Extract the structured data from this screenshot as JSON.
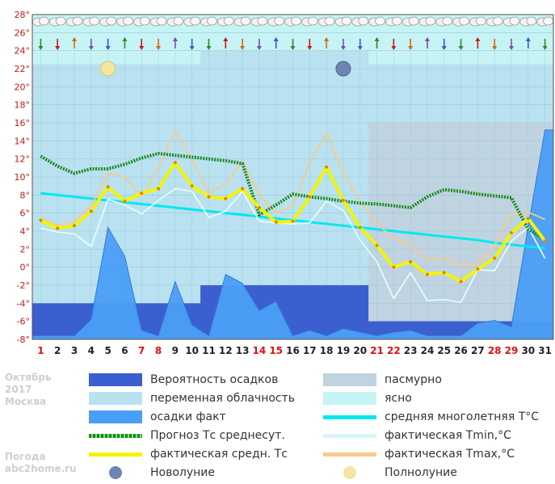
{
  "chart_data": {
    "type": "line",
    "x": [
      1,
      2,
      3,
      4,
      5,
      6,
      7,
      8,
      9,
      10,
      11,
      12,
      13,
      14,
      15,
      16,
      17,
      18,
      19,
      20,
      21,
      22,
      23,
      24,
      25,
      26,
      27,
      28,
      29,
      30,
      31
    ],
    "x_tick_labels": [
      "1",
      "2",
      "3",
      "4",
      "5",
      "6",
      "7",
      "8",
      "9",
      "10",
      "11",
      "12",
      "13",
      "14",
      "15",
      "16",
      "17",
      "18",
      "19",
      "20",
      "21",
      "22",
      "23",
      "24",
      "25",
      "26",
      "27",
      "28",
      "29",
      "30",
      "31"
    ],
    "red_days": [
      1,
      7,
      8,
      14,
      15,
      21,
      22,
      28,
      29
    ],
    "y_ticks": [
      "28°",
      "26°",
      "24°",
      "22°",
      "20°",
      "18°",
      "16°",
      "14°",
      "12°",
      "10°",
      "8°",
      "6°",
      "4°",
      "2°",
      "0°",
      "-2°",
      "-4°",
      "-6°",
      "-8°"
    ],
    "ylim": [
      -8,
      28
    ],
    "grid": true,
    "series": [
      {
        "name": "Прогноз Тс среднесут.",
        "values": [
          12.3,
          11.2,
          10.4,
          10.9,
          10.9,
          11.4,
          12.1,
          12.6,
          12.4,
          12.2,
          12.0,
          11.8,
          11.5,
          5.8,
          6.9,
          8.1,
          7.8,
          7.6,
          7.3,
          7.1,
          7.0,
          6.8,
          6.6,
          7.8,
          8.6,
          8.4,
          8.1,
          7.9,
          7.7,
          4.2,
          3.1
        ]
      },
      {
        "name": "фактическая средн. Тс",
        "values": [
          5.2,
          4.3,
          4.6,
          6.2,
          8.9,
          7.3,
          8.2,
          8.7,
          11.6,
          9.0,
          7.8,
          7.6,
          8.7,
          6.6,
          5.0,
          5.1,
          7.8,
          11.1,
          7.4,
          4.4,
          2.4,
          0.0,
          0.6,
          -0.8,
          -0.6,
          -1.6,
          -0.2,
          1.0,
          3.8,
          5.4,
          2.9
        ]
      },
      {
        "name": "фактическая Tmin,°C",
        "values": [
          4.3,
          3.9,
          3.7,
          2.3,
          7.5,
          6.9,
          5.9,
          7.4,
          8.7,
          8.4,
          5.5,
          6.2,
          8.4,
          5.1,
          4.9,
          4.8,
          4.9,
          7.3,
          6.3,
          3.0,
          0.6,
          -3.5,
          -0.6,
          -3.7,
          -3.6,
          -3.9,
          -0.3,
          -0.4,
          2.9,
          4.4,
          1.0
        ]
      },
      {
        "name": "фактическая Tmax,°C",
        "values": [
          5.4,
          4.6,
          5.1,
          6.8,
          10.4,
          10.0,
          7.8,
          11.0,
          15.1,
          11.9,
          8.2,
          9.2,
          11.7,
          8.0,
          6.0,
          6.8,
          11.6,
          14.9,
          10.4,
          7.3,
          4.8,
          3.2,
          2.4,
          0.9,
          1.0,
          0.2,
          0.4,
          2.4,
          5.9,
          6.1,
          5.3
        ]
      },
      {
        "name": "средняя многолетняя T°C",
        "values": [
          8.2,
          8.0,
          7.8,
          7.6,
          7.4,
          7.2,
          7.0,
          6.8,
          6.6,
          6.4,
          6.2,
          6.0,
          5.8,
          5.6,
          5.4,
          5.2,
          5.0,
          4.8,
          4.6,
          4.4,
          4.2,
          4.0,
          3.8,
          3.6,
          3.4,
          3.2,
          3.0,
          2.7,
          2.5,
          2.3,
          2.1
        ]
      },
      {
        "name": "осадки факт",
        "values": [
          -7.6,
          -7.6,
          -7.6,
          -5.8,
          4.4,
          1.2,
          -7.0,
          -7.6,
          -1.6,
          -6.4,
          -7.6,
          -0.8,
          -1.8,
          -4.8,
          -3.8,
          -7.6,
          -7.0,
          -7.6,
          -6.8,
          -7.2,
          -7.6,
          -7.2,
          -7.0,
          -7.6,
          -7.6,
          -7.6,
          -6.2,
          -5.9,
          -6.6,
          4.5,
          15.2
        ]
      },
      {
        "name": "Вероятность осадков",
        "values": [
          -4,
          -4,
          -4,
          -4,
          -4,
          -4,
          -4,
          -4,
          -4,
          -4,
          -2,
          -2,
          -2,
          -2,
          -2,
          -2,
          -2,
          -2,
          -2,
          -2,
          -6,
          -6,
          -6,
          -6,
          -6,
          -6,
          -6,
          -6,
          -6,
          -6,
          -6
        ]
      }
    ],
    "cloud_periods": [
      {
        "from": 1,
        "to": 10,
        "type": "переменная облачность"
      },
      {
        "from": 11,
        "to": 20,
        "type": "переменная облачность"
      },
      {
        "from": 21,
        "to": 31,
        "type": "ясно/пасмурно"
      }
    ],
    "moon": {
      "full_moon_day": 5,
      "new_moon_day": 19
    }
  },
  "legend": {
    "items": [
      {
        "label": "Вероятность осадков",
        "color": "#3c5fd0",
        "kind": "fill"
      },
      {
        "label": "пасмурно",
        "color": "#c0d3e0",
        "kind": "fill"
      },
      {
        "label": "переменная облачность",
        "color": "#b9e1f0",
        "kind": "fill"
      },
      {
        "label": "ясно",
        "color": "#c6f3f3",
        "kind": "fill"
      },
      {
        "label": "осадки факт",
        "color": "#4a9ef5",
        "kind": "fill"
      },
      {
        "label": "средняя многолетняя T°C",
        "color": "#00e8f0",
        "kind": "line"
      },
      {
        "label": "Прогноз Тс среднесут.",
        "color": "#1a8a1a",
        "kind": "dotted"
      },
      {
        "label": "фактическая Tmin,°C",
        "color": "#d8f6f8",
        "kind": "line"
      },
      {
        "label": "фактическая средн. Тс",
        "color": "#f4f400",
        "kind": "line"
      },
      {
        "label": "фактическая Tmax,°C",
        "color": "#f7c98b",
        "kind": "line"
      },
      {
        "label": "Новолуние",
        "color": "#7084b4",
        "kind": "moon"
      },
      {
        "label": "Полнолуние",
        "color": "#f2e6a0",
        "kind": "moon"
      }
    ]
  },
  "side_info": {
    "month": "Октябрь",
    "year": "2017",
    "city": "Москва",
    "site_line1": "Погода",
    "site_line2": "abc2home.ru"
  }
}
